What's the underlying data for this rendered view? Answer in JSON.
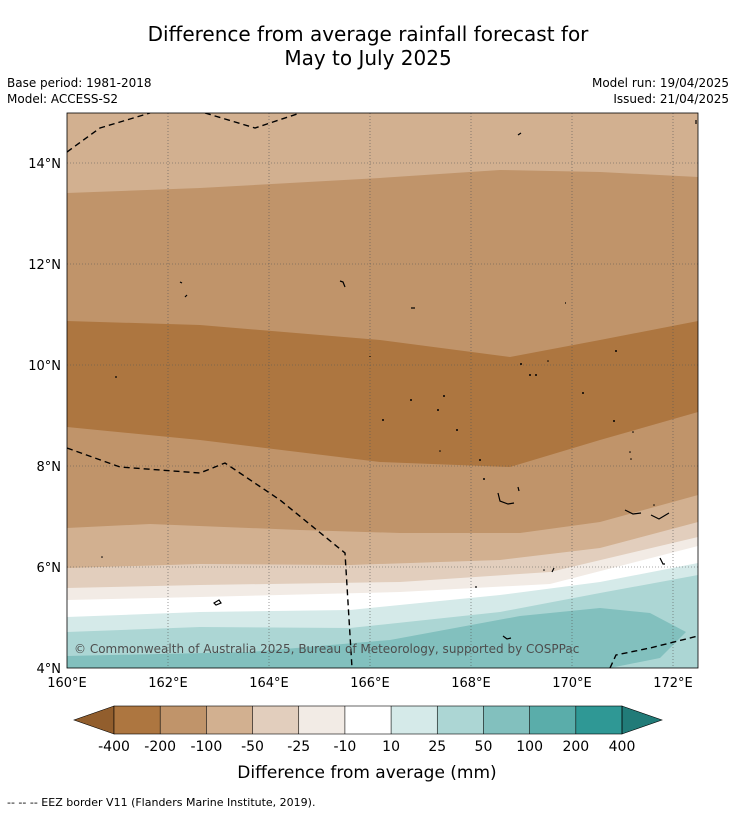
{
  "title": {
    "line1": "Difference from average rainfall forecast for",
    "line2": "May to July 2025"
  },
  "meta": {
    "base_period": "Base period: 1981-2018",
    "model": "Model: ACCESS-S2",
    "model_run": "Model run: 19/04/2025",
    "issued": "Issued: 21/04/2025"
  },
  "map": {
    "lat_ticks": [
      "4°N",
      "6°N",
      "8°N",
      "10°N",
      "12°N",
      "14°N"
    ],
    "lon_ticks": [
      "160°E",
      "162°E",
      "164°E",
      "166°E",
      "168°E",
      "170°E",
      "172°E"
    ],
    "copyright": "© Commonwealth of Australia 2025, Bureau of Meteorology, supported by COSPPac"
  },
  "colorbar": {
    "labels": [
      "-400",
      "-200",
      "-100",
      "-50",
      "-25",
      "-10",
      "10",
      "25",
      "50",
      "100",
      "200",
      "400"
    ],
    "colors": [
      "#925e2d",
      "#ad7640",
      "#c0946a",
      "#d2b090",
      "#e2cebd",
      "#f2ebe5",
      "#ffffff",
      "#d5eae9",
      "#acd6d4",
      "#82c0be",
      "#5aadaa",
      "#2f9895",
      "#217b78"
    ],
    "title": "Difference from average (mm)"
  },
  "footnote": "--  --  -- EEZ border V11 (Flanders Marine Institute, 2019)."
}
